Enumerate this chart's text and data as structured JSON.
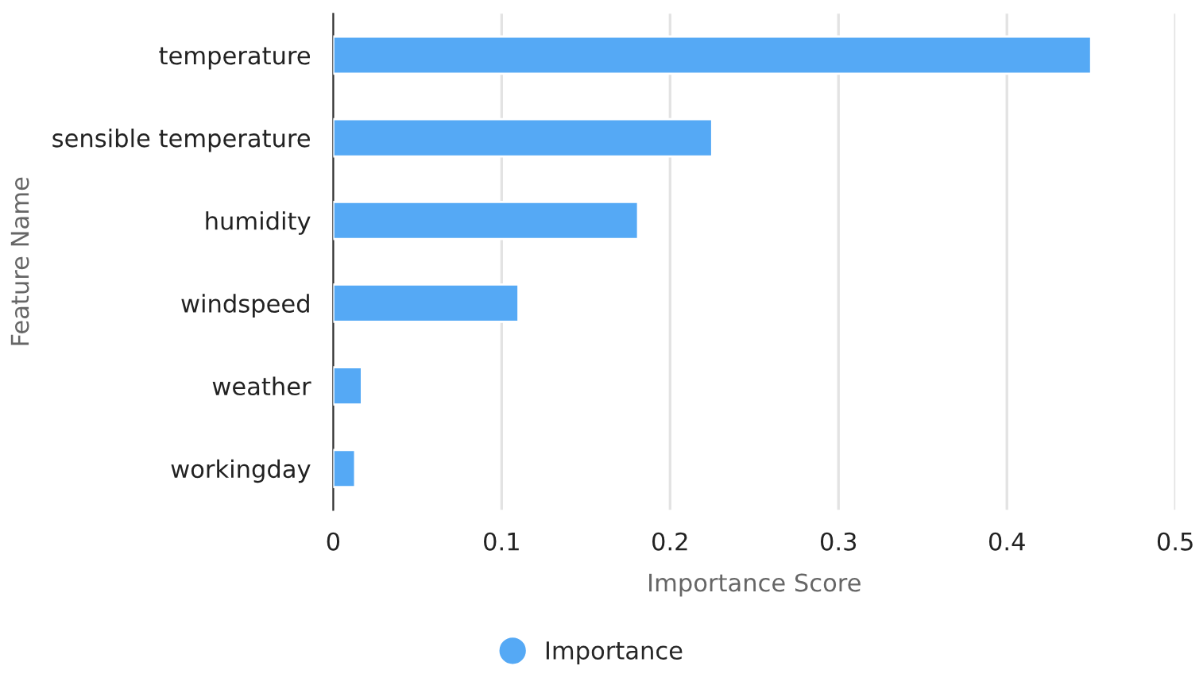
{
  "chart_data": {
    "type": "bar",
    "orientation": "horizontal",
    "categories": [
      "temperature",
      "sensible temperature",
      "humidity",
      "windspeed",
      "weather",
      "workingday"
    ],
    "series": [
      {
        "name": "Importance",
        "color": "#55a9f5",
        "values": [
          0.45,
          0.225,
          0.181,
          0.11,
          0.017,
          0.013
        ]
      }
    ],
    "xlabel": "Importance Score",
    "ylabel": "Feature Name",
    "xlim": [
      0,
      0.5
    ],
    "xticks": [
      0,
      0.1,
      0.2,
      0.3,
      0.4,
      0.5
    ],
    "grid": "x",
    "legend": "bottom"
  }
}
